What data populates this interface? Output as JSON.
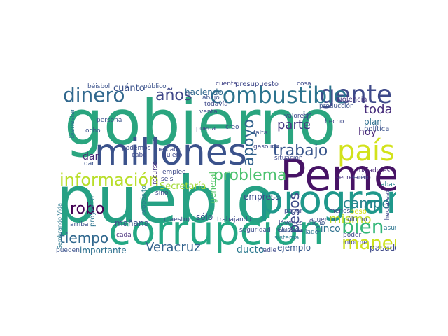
{
  "words": [
    {
      "text": "gobierno",
      "color": "#2aa57f"
    },
    {
      "text": "pueblo",
      "color": "#26a184"
    },
    {
      "text": "Pemex",
      "color": "#471365"
    },
    {
      "text": "corrupción",
      "color": "#23a883"
    },
    {
      "text": "programa",
      "color": "#1f988b"
    },
    {
      "text": "millones",
      "color": "#3b528b"
    },
    {
      "text": "país",
      "color": "#d2e21b"
    },
    {
      "text": "gente",
      "color": "#3e4989"
    },
    {
      "text": "combustible",
      "color": "#2c738e"
    },
    {
      "text": "dinero",
      "color": "#31688e"
    },
    {
      "text": "información",
      "color": "#b8de29"
    },
    {
      "text": "trabajo",
      "color": "#39568c"
    },
    {
      "text": "bien",
      "color": "#35b779"
    },
    {
      "text": "manera",
      "color": "#cde11d"
    },
    {
      "text": "problema",
      "color": "#4ac16d"
    },
    {
      "text": "apoyo",
      "color": "#33628d"
    },
    {
      "text": "años",
      "color": "#3f4788"
    },
    {
      "text": "robo",
      "color": "#440154"
    },
    {
      "text": "tiempo",
      "color": "#31688e"
    },
    {
      "text": "toda",
      "color": "#472d7b"
    },
    {
      "text": "campo",
      "color": "#26828e"
    },
    {
      "text": "pesos",
      "color": "#3e4a89"
    },
    {
      "text": "mismo",
      "color": "#c0df25"
    },
    {
      "text": "Veracruz",
      "color": "#33638d"
    },
    {
      "text": "parte",
      "color": "#453781"
    },
    {
      "text": "ir",
      "color": "#375a8c"
    },
    {
      "text": "cuánto",
      "color": "#3b528b"
    },
    {
      "text": "haciendo",
      "color": "#31688e"
    },
    {
      "text": "mañana",
      "color": "#3b528b"
    },
    {
      "text": "importante",
      "color": "#2d708e"
    },
    {
      "text": "ducto",
      "color": "#2a788e"
    },
    {
      "text": "ejemplo",
      "color": "#38588c"
    },
    {
      "text": "pasado",
      "color": "#3e4989"
    },
    {
      "text": "Secretaría",
      "color": "#a2da37"
    },
    {
      "text": "empresa",
      "color": "#3e4a89"
    },
    {
      "text": "cinco",
      "color": "#2d708e"
    },
    {
      "text": "hoy",
      "color": "#482576"
    },
    {
      "text": "plan",
      "color": "#2e6f8e"
    },
    {
      "text": "política",
      "color": "#3b528b"
    },
    {
      "text": "violencia",
      "color": "#46337e"
    },
    {
      "text": "dar",
      "color": "#482878"
    },
    {
      "text": "presupuesto",
      "color": "#3f4889"
    },
    {
      "text": "cuenta",
      "color": "#414487"
    },
    {
      "text": "sólo",
      "color": "#3b528b"
    },
    {
      "text": "general",
      "color": "#55c667"
    },
    {
      "text": "proyecto",
      "color": "#2c738e"
    },
    {
      "text": "trabajadores",
      "color": "#482475"
    },
    {
      "text": "secretario",
      "color": "#46327e"
    },
    {
      "text": "seguridad",
      "color": "#3d4e8a"
    },
    {
      "text": "Ciudad",
      "color": "#3b528b"
    },
    {
      "text": "lado",
      "color": "#2d708e"
    },
    {
      "text": "abasto",
      "color": "#25838e"
    },
    {
      "text": "peso",
      "color": "#d8e219"
    },
    {
      "text": "asunto",
      "color": "#2b748e"
    },
    {
      "text": "poder",
      "color": "#3f4889"
    },
    {
      "text": "informe",
      "color": "#3f4889"
    },
    {
      "text": "acuerdo",
      "color": "#3f4788"
    },
    {
      "text": "pueden",
      "color": "#3b528b"
    },
    {
      "text": "cada",
      "color": "#472c7a"
    },
    {
      "text": "maestro",
      "color": "#3f4889"
    },
    {
      "text": "trabajando",
      "color": "#3e4989"
    },
    {
      "text": "pagar",
      "color": "#3e4a89"
    },
    {
      "text": "sistema",
      "color": "#2a788e"
    },
    {
      "text": "muchas",
      "color": "#3b528b"
    },
    {
      "text": "nadie",
      "color": "#3e4989"
    },
    {
      "text": "situación",
      "color": "#3e4989"
    },
    {
      "text": "jóvenes",
      "color": "#3e4989"
    },
    {
      "text": "dicho",
      "color": "#3b528b"
    },
    {
      "text": "quiero",
      "color": "#3e4989"
    },
    {
      "text": "recurso",
      "color": "#46327e"
    },
    {
      "text": "empleo",
      "color": "#3e4989"
    },
    {
      "text": "seis",
      "color": "#3e4989"
    },
    {
      "text": "sino",
      "color": "#3e4989"
    },
    {
      "text": "propósito",
      "color": "#2a788e"
    },
    {
      "text": "arriba",
      "color": "#3b528b"
    },
    {
      "text": "ocho",
      "color": "#3b528b"
    },
    {
      "text": "persona",
      "color": "#3b528b"
    },
    {
      "text": "béisbol",
      "color": "#3b528b"
    },
    {
      "text": "público",
      "color": "#3b528b"
    },
    {
      "text": "bienestar",
      "color": "#2c738e"
    },
    {
      "text": "Sembrando Vida",
      "color": "#2a788e"
    },
    {
      "text": "gasolina",
      "color": "#3e4989"
    },
    {
      "text": "falta",
      "color": "#3b528b"
    },
    {
      "text": "valores",
      "color": "#3e4989"
    },
    {
      "text": "venta",
      "color": "#3e4989"
    },
    {
      "text": "creo",
      "color": "#3b528b"
    },
    {
      "text": "todavía",
      "color": "#3e4989"
    },
    {
      "text": "abajo",
      "color": "#3b528b"
    },
    {
      "text": "pueda",
      "color": "#3e4989"
    },
    {
      "text": "podemos",
      "color": "#3e4989"
    },
    {
      "text": "cosa",
      "color": "#3e4989"
    },
    {
      "text": "producción",
      "color": "#3b528b"
    },
    {
      "text": "hecho",
      "color": "#3e4989"
    },
    {
      "text": "enero",
      "color": "#3e4989"
    },
    {
      "text": "hectáreas",
      "color": "#3e4989"
    },
    {
      "text": "último",
      "color": "#3e4989"
    },
    {
      "text": "menos",
      "color": "#3e4989"
    },
    {
      "text": "cabo",
      "color": "#3e4989"
    },
    {
      "text": "mercado",
      "color": "#3e4989"
    },
    {
      "text": "dar",
      "color": "#3b528b"
    }
  ]
}
